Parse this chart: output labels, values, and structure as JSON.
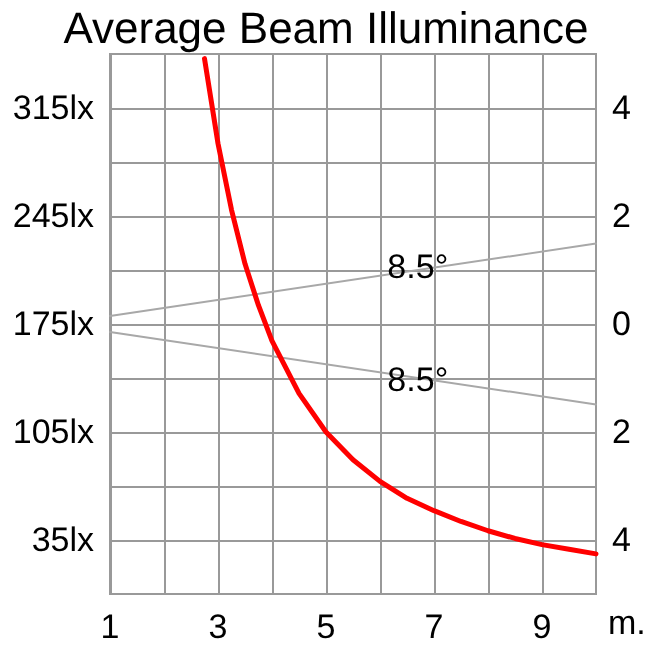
{
  "chart_data": {
    "type": "line",
    "title": "Average Beam Illuminance",
    "xlabel": "m.",
    "xlim": [
      1,
      10
    ],
    "xticks": [
      1,
      {
        "value": 2,
        "label": null
      },
      3,
      {
        "value": 4,
        "label": null
      },
      5,
      {
        "value": 6,
        "label": null
      },
      7,
      {
        "value": 8,
        "label": null
      },
      9
    ],
    "ylim": [
      0,
      350
    ],
    "yticks": [
      {
        "value": 35,
        "label": "35lx"
      },
      {
        "value": 70,
        "label": null
      },
      {
        "value": 105,
        "label": "105lx"
      },
      {
        "value": 140,
        "label": null
      },
      {
        "value": 175,
        "label": "175lx"
      },
      {
        "value": 210,
        "label": null
      },
      {
        "value": 245,
        "label": "245lx"
      },
      {
        "value": 280,
        "label": null
      },
      {
        "value": 315,
        "label": "315lx"
      }
    ],
    "y2lim": [
      -5,
      5
    ],
    "y2ticks": [
      {
        "value": -4,
        "label": "4"
      },
      {
        "value": -2,
        "label": "2"
      },
      0,
      2,
      4
    ],
    "grid": true,
    "marker": "none",
    "line_style": "solid",
    "series": [
      {
        "color": "#ff0000",
        "x": [
          2.75,
          3,
          3.25,
          3.5,
          3.75,
          4,
          4.5,
          5,
          5.5,
          6,
          6.5,
          7,
          7.5,
          8,
          8.5,
          9,
          9.5,
          10
        ],
        "values": [
          347,
          292,
          249,
          214,
          187,
          164,
          130,
          105,
          87,
          73,
          62,
          54,
          47,
          41,
          36,
          32,
          29,
          26
        ]
      },
      {
        "color": "#a8a8a8",
        "axis": "y2",
        "x": [
          1,
          10
        ],
        "values": [
          0.15,
          1.49
        ]
      },
      {
        "color": "#a8a8a8",
        "axis": "y2",
        "x": [
          1,
          10
        ],
        "values": [
          -0.15,
          -1.49
        ]
      }
    ],
    "annotations": [
      {
        "text": "8.5°",
        "x": 6.7,
        "y": 212
      },
      {
        "text": "8.5°",
        "x": 6.7,
        "y": 139
      }
    ]
  }
}
